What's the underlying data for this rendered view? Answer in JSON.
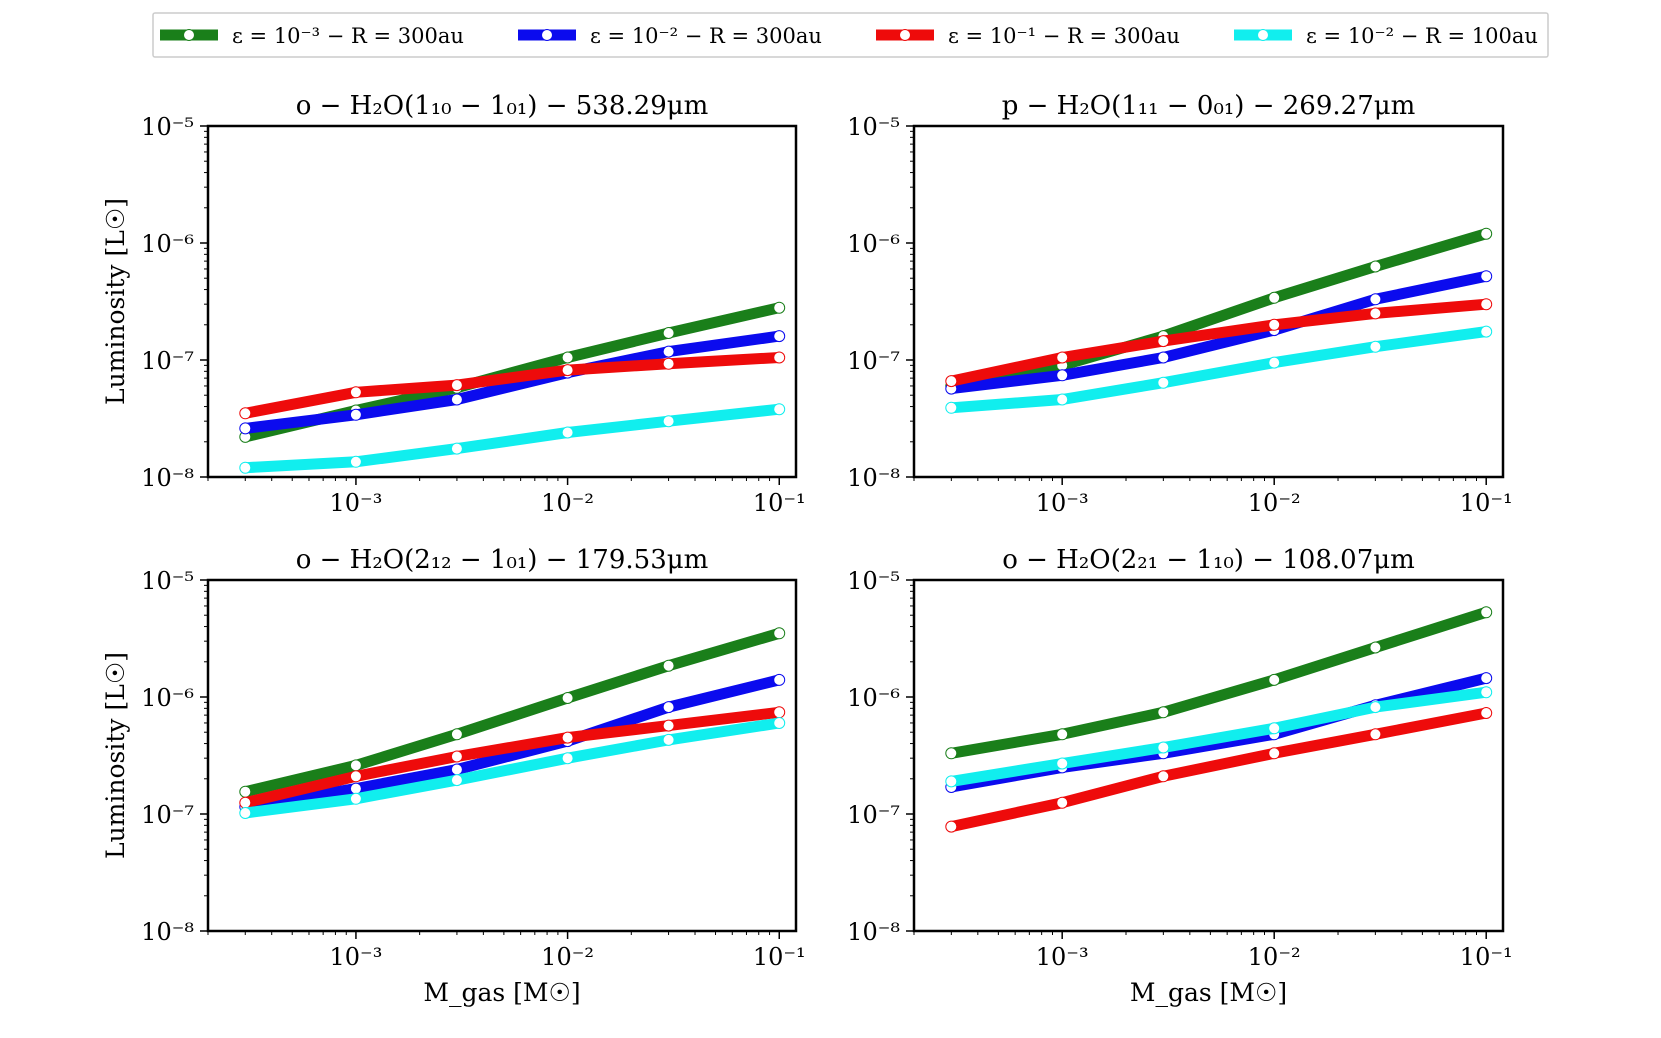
{
  "figure": {
    "legend": [
      {
        "label": "ε = 10⁻³ − R = 300au",
        "color": "#1a7f1a"
      },
      {
        "label": "ε = 10⁻² − R = 300au",
        "color": "#0b0bee"
      },
      {
        "label": "ε = 10⁻¹ − R = 300au",
        "color": "#ee0b0b"
      },
      {
        "label": "ε = 10⁻² − R = 100au",
        "color": "#11eeee"
      }
    ],
    "xlabel": "M_gas [M☉]",
    "ylabel": "Luminosity [L☉]"
  },
  "chart_data": [
    {
      "type": "line",
      "title": "o − H₂O(1₁₀ − 1₀₁) − 538.29μm",
      "xscale": "log",
      "yscale": "log",
      "xlim": [
        0.0002,
        0.12
      ],
      "ylim": [
        1e-08,
        1e-05
      ],
      "xticks": [
        "10⁻³",
        "10⁻²",
        "10⁻¹"
      ],
      "yticks": [
        "10⁻⁵",
        "10⁻⁶",
        "10⁻⁷",
        "10⁻⁸"
      ],
      "x": [
        0.0003,
        0.001,
        0.003,
        0.01,
        0.03,
        0.1
      ],
      "series": [
        {
          "name": "ε = 10⁻³ − R = 300au",
          "values": [
            2.2e-08,
            3.7e-08,
            5.8e-08,
            1.05e-07,
            1.7e-07,
            2.8e-07
          ]
        },
        {
          "name": "ε = 10⁻² − R = 300au",
          "values": [
            2.6e-08,
            3.4e-08,
            4.6e-08,
            7.8e-08,
            1.18e-07,
            1.6e-07
          ]
        },
        {
          "name": "ε = 10⁻¹ − R = 300au",
          "values": [
            3.5e-08,
            5.3e-08,
            6.1e-08,
            8.2e-08,
            9.3e-08,
            1.05e-07
          ]
        },
        {
          "name": "ε = 10⁻² − R = 100au",
          "values": [
            1.2e-08,
            1.35e-08,
            1.75e-08,
            2.4e-08,
            3e-08,
            3.8e-08
          ]
        }
      ]
    },
    {
      "type": "line",
      "title": "p − H₂O(1₁₁ − 0₀₁) − 269.27μm",
      "xscale": "log",
      "yscale": "log",
      "xlim": [
        0.0002,
        0.12
      ],
      "ylim": [
        1e-08,
        1e-05
      ],
      "xticks": [
        "10⁻³",
        "10⁻²",
        "10⁻¹"
      ],
      "yticks": [
        "10⁻⁵",
        "10⁻⁶",
        "10⁻⁷",
        "10⁻⁸"
      ],
      "x": [
        0.0003,
        0.001,
        0.003,
        0.01,
        0.03,
        0.1
      ],
      "series": [
        {
          "name": "ε = 10⁻³ − R = 300au",
          "values": [
            6e-08,
            9e-08,
            1.6e-07,
            3.4e-07,
            6.3e-07,
            1.2e-06
          ]
        },
        {
          "name": "ε = 10⁻² − R = 300au",
          "values": [
            5.7e-08,
            7.4e-08,
            1.05e-07,
            1.8e-07,
            3.3e-07,
            5.2e-07
          ]
        },
        {
          "name": "ε = 10⁻¹ − R = 300au",
          "values": [
            6.6e-08,
            1.05e-07,
            1.45e-07,
            2e-07,
            2.5e-07,
            3e-07
          ]
        },
        {
          "name": "ε = 10⁻² − R = 100au",
          "values": [
            3.9e-08,
            4.6e-08,
            6.4e-08,
            9.5e-08,
            1.3e-07,
            1.75e-07
          ]
        }
      ]
    },
    {
      "type": "line",
      "title": "o − H₂O(2₁₂ − 1₀₁) − 179.53μm",
      "xscale": "log",
      "yscale": "log",
      "xlim": [
        0.0002,
        0.12
      ],
      "ylim": [
        1e-08,
        1e-05
      ],
      "xticks": [
        "10⁻³",
        "10⁻²",
        "10⁻¹"
      ],
      "yticks": [
        "10⁻⁵",
        "10⁻⁶",
        "10⁻⁷",
        "10⁻⁸"
      ],
      "x": [
        0.0003,
        0.001,
        0.003,
        0.01,
        0.03,
        0.1
      ],
      "series": [
        {
          "name": "ε = 10⁻³ − R = 300au",
          "values": [
            1.55e-07,
            2.6e-07,
            4.8e-07,
            9.8e-07,
            1.85e-06,
            3.5e-06
          ]
        },
        {
          "name": "ε = 10⁻² − R = 300au",
          "values": [
            1.15e-07,
            1.65e-07,
            2.4e-07,
            4.2e-07,
            8.2e-07,
            1.4e-06
          ]
        },
        {
          "name": "ε = 10⁻¹ − R = 300au",
          "values": [
            1.25e-07,
            2.1e-07,
            3.1e-07,
            4.5e-07,
            5.7e-07,
            7.4e-07
          ]
        },
        {
          "name": "ε = 10⁻² − R = 100au",
          "values": [
            1.02e-07,
            1.35e-07,
            1.95e-07,
            3e-07,
            4.3e-07,
            6e-07
          ]
        }
      ]
    },
    {
      "type": "line",
      "title": "o − H₂O(2₂₁ − 1₁₀) − 108.07μm",
      "xscale": "log",
      "yscale": "log",
      "xlim": [
        0.0002,
        0.12
      ],
      "ylim": [
        1e-08,
        1e-05
      ],
      "xticks": [
        "10⁻³",
        "10⁻²",
        "10⁻¹"
      ],
      "yticks": [
        "10⁻⁵",
        "10⁻⁶",
        "10⁻⁷",
        "10⁻⁸"
      ],
      "x": [
        0.0003,
        0.001,
        0.003,
        0.01,
        0.03,
        0.1
      ],
      "series": [
        {
          "name": "ε = 10⁻³ − R = 300au",
          "values": [
            3.3e-07,
            4.8e-07,
            7.4e-07,
            1.4e-06,
            2.65e-06,
            5.3e-06
          ]
        },
        {
          "name": "ε = 10⁻² − R = 300au",
          "values": [
            1.7e-07,
            2.5e-07,
            3.3e-07,
            4.8e-07,
            8.5e-07,
            1.45e-06
          ]
        },
        {
          "name": "ε = 10⁻¹ − R = 300au",
          "values": [
            7.8e-08,
            1.25e-07,
            2.1e-07,
            3.3e-07,
            4.8e-07,
            7.3e-07
          ]
        },
        {
          "name": "ε = 10⁻² − R = 100au",
          "values": [
            1.9e-07,
            2.7e-07,
            3.7e-07,
            5.4e-07,
            8.2e-07,
            1.1e-06
          ]
        }
      ]
    }
  ]
}
